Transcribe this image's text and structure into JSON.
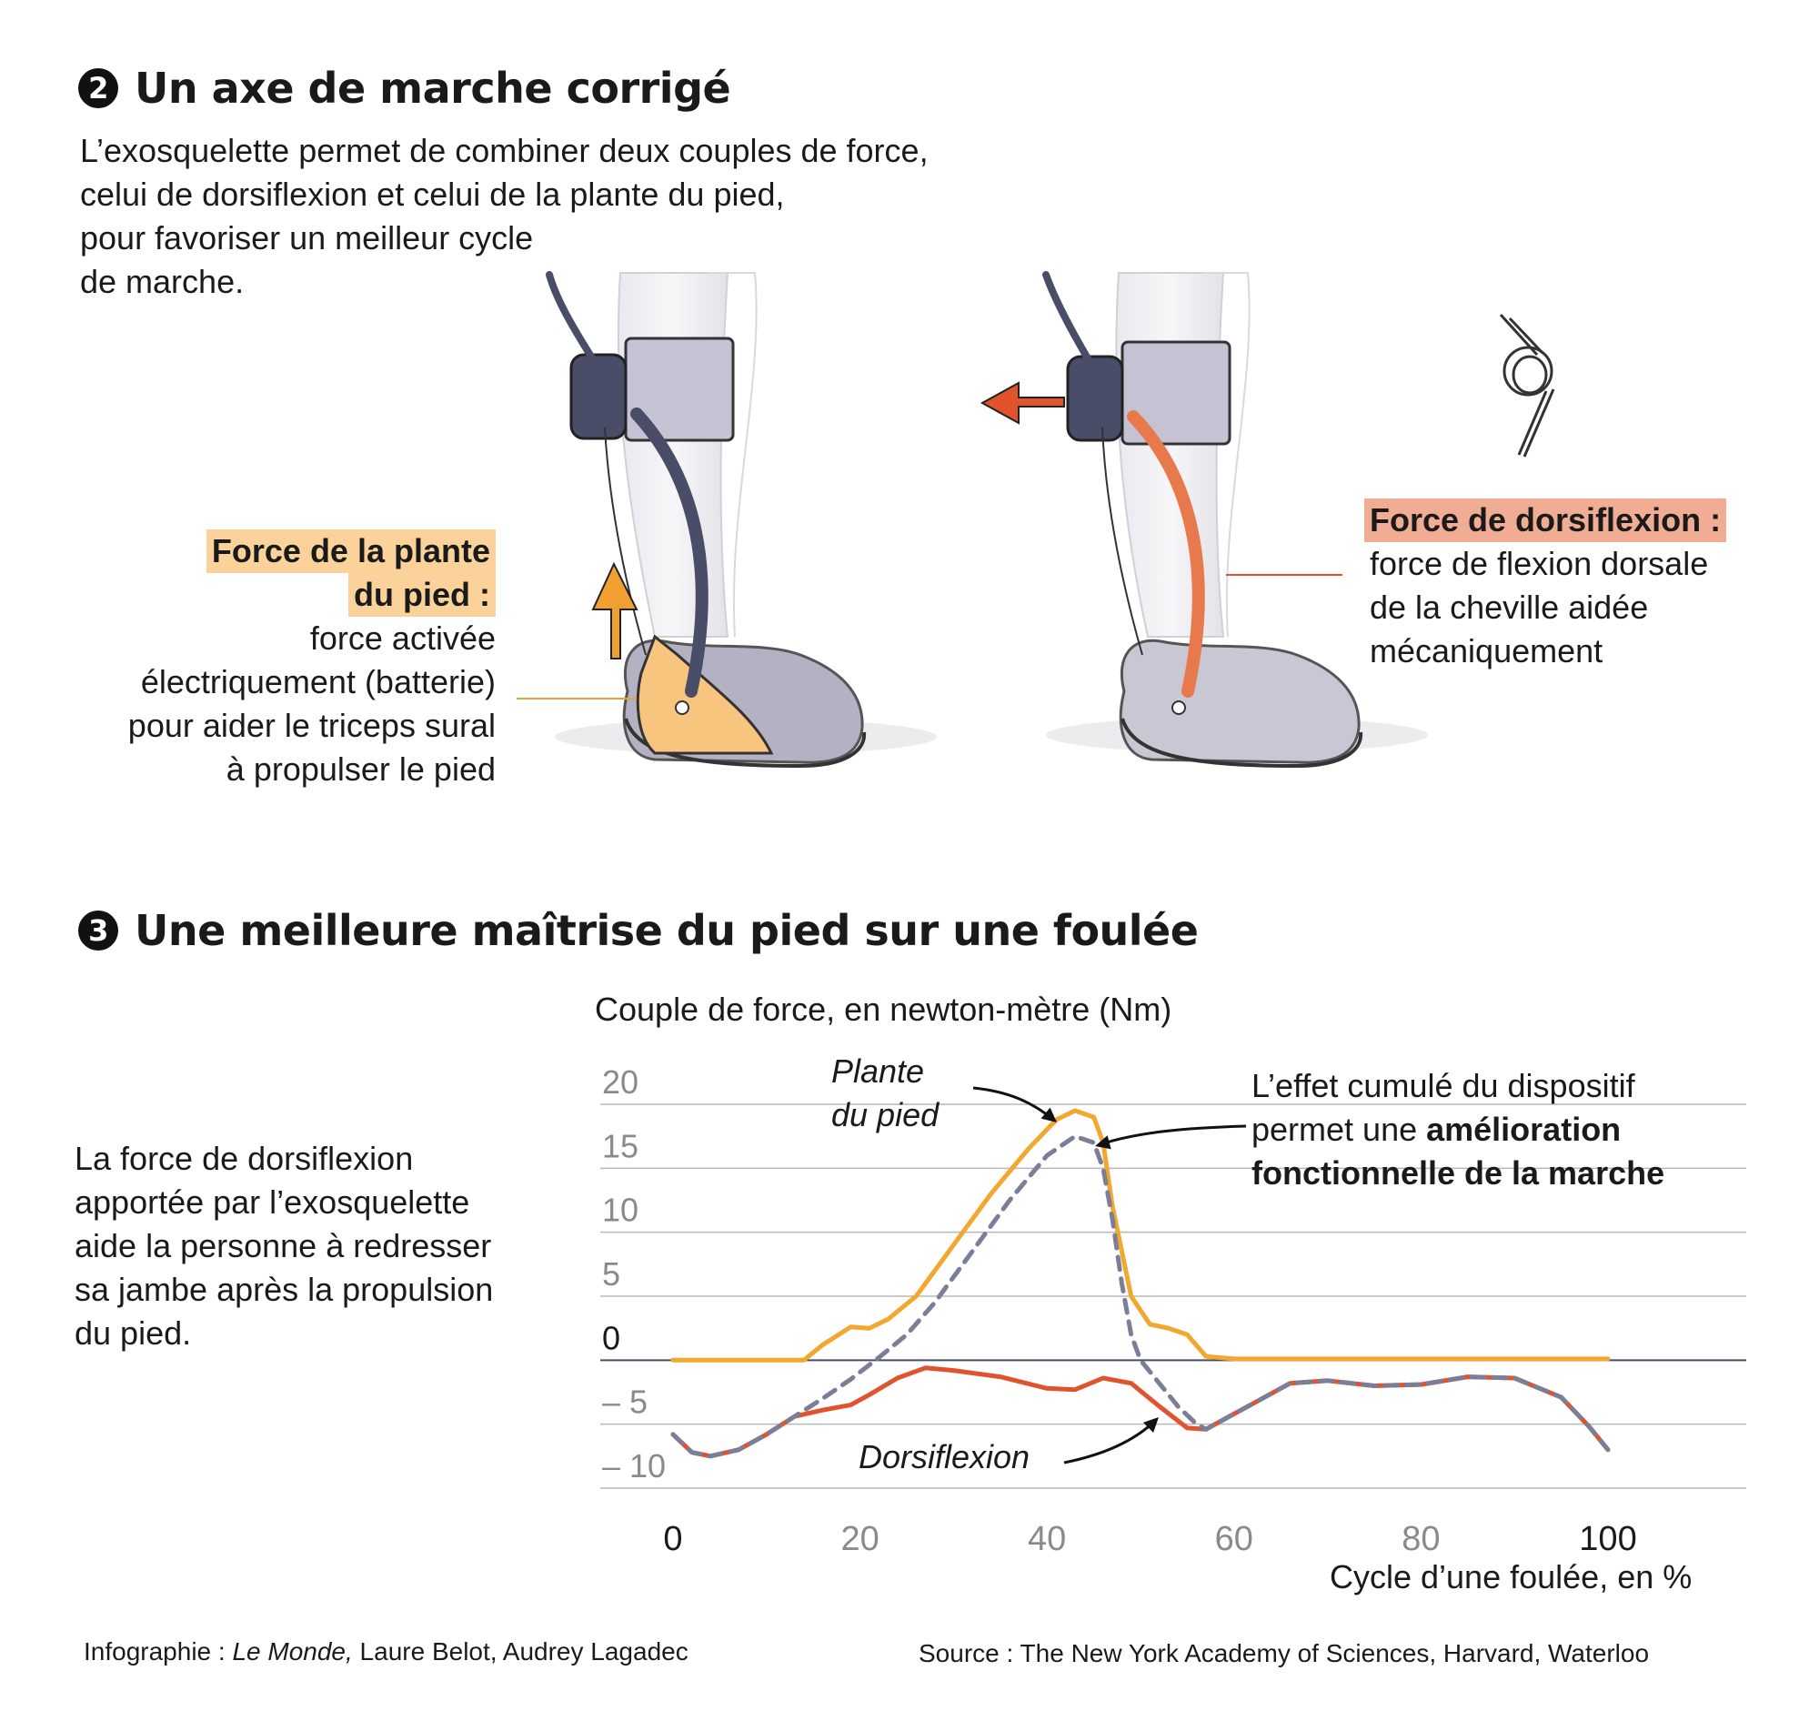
{
  "section2": {
    "number": "2",
    "title": "Un axe de marche corrigé",
    "intro": [
      "L’exosquelette permet de combiner deux couples de force,",
      "celui de dorsiflexion et celui de la plante du pied,",
      "pour favoriser un meilleur cycle",
      "de marche."
    ],
    "plantar_label": {
      "title_lines": [
        "Force de la plante",
        "du pied :"
      ],
      "body_lines": [
        "force activée",
        "électriquement (batterie)",
        "pour aider le triceps sural",
        "à propulser le pied"
      ],
      "highlight_color": "#fbd39a"
    },
    "dorsi_label": {
      "title": "Force de dorsiflexion :",
      "body_lines": [
        "force de flexion dorsale",
        "de la cheville aidée",
        "mécaniquement"
      ],
      "highlight_color": "#f1ad94"
    }
  },
  "section3": {
    "number": "3",
    "title": "Une meilleure maîtrise du pied sur une foulée",
    "side_text": [
      "La force de dorsiflexion",
      "apportée par l’exosquelette",
      "aide la personne à redresser",
      "sa jambe après la propulsion",
      "du pied."
    ]
  },
  "chart_data": {
    "type": "line",
    "ylabel": "Couple de force, en newton-mètre (Nm)",
    "xlabel": "Cycle d’une foulée, en %",
    "xlim": [
      0,
      100
    ],
    "ylim": [
      -10,
      20
    ],
    "x_ticks": [
      "0",
      "20",
      "40",
      "60",
      "80",
      "100"
    ],
    "y_ticks": [
      "20",
      "15",
      "10",
      "5",
      "0",
      "– 5",
      "– 10"
    ],
    "grid": true,
    "annotations": {
      "plantar": [
        "Plante",
        "du pied"
      ],
      "dorsi": "Dorsiflexion",
      "cumul": [
        "L’effet cumulé du dispositif",
        "permet une ",
        "amélioration",
        "fonctionnelle de la marche"
      ]
    },
    "series": [
      {
        "name": "Plante du pied",
        "color": "#f2a72f",
        "style": "solid",
        "x": [
          0,
          5,
          10,
          14,
          16,
          19,
          21,
          23,
          26,
          30,
          34,
          38,
          41,
          43,
          45,
          46,
          47,
          49,
          51,
          53,
          55,
          57,
          60,
          65,
          70,
          80,
          90,
          100
        ],
        "y": [
          0,
          0,
          0,
          0,
          1.2,
          2.6,
          2.5,
          3.2,
          5.0,
          9.0,
          13.0,
          16.5,
          18.8,
          19.5,
          19.0,
          17.0,
          12.0,
          5.0,
          2.8,
          2.5,
          2.0,
          0.3,
          0.1,
          0.1,
          0.1,
          0.1,
          0.1,
          0.1
        ]
      },
      {
        "name": "Dorsiflexion",
        "color": "#e0532c",
        "style": "solid",
        "x": [
          0,
          2,
          4,
          7,
          10,
          13,
          16,
          19,
          21,
          24,
          27,
          30,
          35,
          40,
          43,
          46,
          49,
          52,
          55,
          57,
          59,
          62,
          66,
          70,
          75,
          80,
          85,
          90,
          95,
          98,
          100
        ],
        "y": [
          -5.8,
          -7.2,
          -7.5,
          -7.0,
          -5.8,
          -4.4,
          -3.9,
          -3.5,
          -2.7,
          -1.4,
          -0.6,
          -0.8,
          -1.3,
          -2.2,
          -2.3,
          -1.4,
          -1.8,
          -3.6,
          -5.3,
          -5.4,
          -4.6,
          -3.4,
          -1.8,
          -1.6,
          -2.0,
          -1.9,
          -1.3,
          -1.4,
          -2.9,
          -5.2,
          -7.0
        ]
      },
      {
        "name": "Effet cumulé",
        "color": "#7a7e98",
        "style": "dashed",
        "x": [
          0,
          2,
          4,
          7,
          10,
          13,
          16,
          19,
          22,
          25,
          28,
          32,
          36,
          40,
          43,
          45,
          46,
          47,
          48,
          49,
          50,
          52,
          54,
          56,
          57,
          59,
          62,
          66,
          70,
          75,
          80,
          85,
          90,
          95,
          98,
          100
        ],
        "y": [
          -5.8,
          -7.2,
          -7.5,
          -7.0,
          -5.8,
          -4.4,
          -3.0,
          -1.5,
          0.2,
          2.0,
          4.5,
          8.5,
          12.5,
          16.0,
          17.5,
          17.0,
          15.0,
          11.0,
          6.0,
          2.0,
          0.0,
          -1.8,
          -3.6,
          -5.0,
          -5.4,
          -4.6,
          -3.4,
          -1.8,
          -1.6,
          -2.0,
          -1.9,
          -1.3,
          -1.4,
          -2.9,
          -5.2,
          -7.0
        ]
      }
    ]
  },
  "footer": {
    "credit_prefix": "Infographie : ",
    "credit_pub": "Le Monde,",
    "credit_rest": " Laure Belot, Audrey Lagadec",
    "source": "Source : The New York Academy of Sciences, Harvard, Waterloo"
  },
  "illustration": {
    "left_leg_icon": "ankle-exoskeleton-plantar-icon",
    "right_leg_icon": "ankle-exoskeleton-dorsi-icon",
    "spring_icon": "torsion-spring-icon",
    "up_arrow_color": "#f0a030",
    "left_arrow_color": "#e0532c"
  }
}
